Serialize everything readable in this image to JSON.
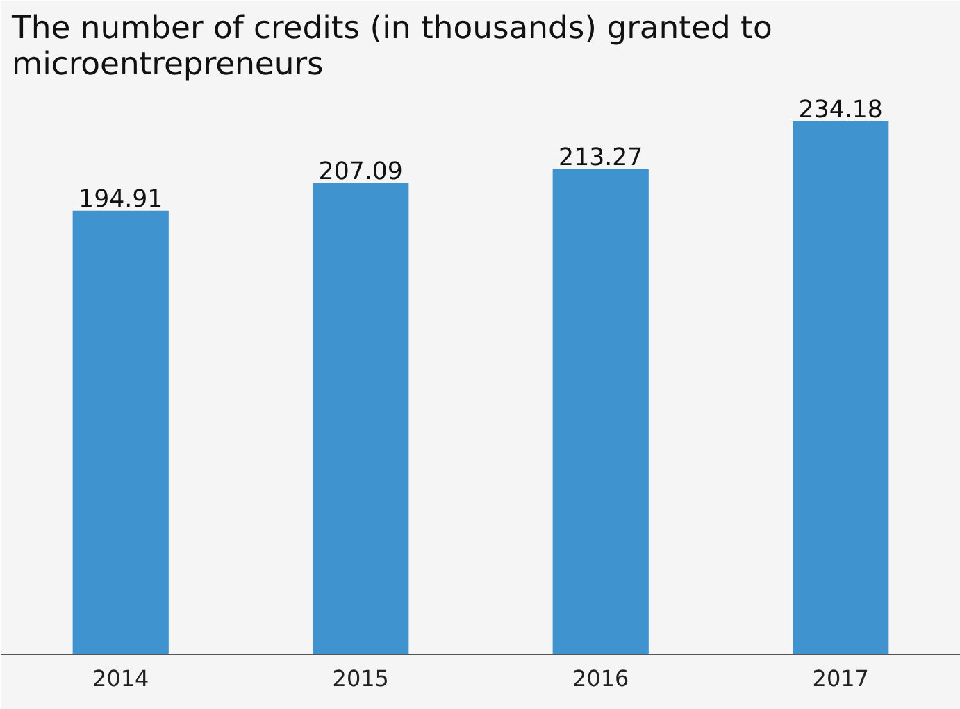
{
  "chart_data": {
    "type": "bar",
    "title": "The number of credits (in thousands) granted to microentrepreneurs",
    "categories": [
      "2014",
      "2015",
      "2016",
      "2017"
    ],
    "values": [
      194.91,
      207.09,
      213.27,
      234.18
    ],
    "color": "#3f93cf",
    "data_labels": true
  }
}
